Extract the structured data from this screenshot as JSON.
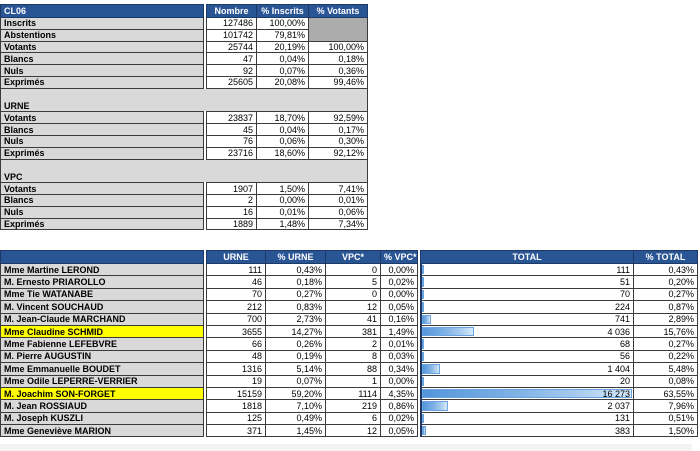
{
  "colors": {
    "header_blue": "#2A5595",
    "label_gray": "#D9D9D9",
    "blocked_gray": "#ACACAC",
    "highlight_yellow": "#FFFF00",
    "bar_blue_start": "#5395DB",
    "bar_blue_end": "#D6E9FA",
    "bar_axis_navy": "#1F3864"
  },
  "summary_table": {
    "title": "CL06",
    "columns": [
      "Nombre",
      "% Inscrits",
      "% Votants"
    ],
    "rows": [
      {
        "type": "data",
        "label": "Inscrits",
        "nombre": "127486",
        "pct_inscrits": "100,00%",
        "pct_votants": "",
        "blocked": "start"
      },
      {
        "type": "data",
        "label": "Abstentions",
        "nombre": "101742",
        "pct_inscrits": "79,81%",
        "pct_votants": "",
        "blocked": "cont"
      },
      {
        "type": "data",
        "label": "Votants",
        "nombre": "25744",
        "pct_inscrits": "20,19%",
        "pct_votants": "100,00%"
      },
      {
        "type": "data",
        "label": "Blancs",
        "nombre": "47",
        "pct_inscrits": "0,04%",
        "pct_votants": "0,18%"
      },
      {
        "type": "data",
        "label": "Nuls",
        "nombre": "92",
        "pct_inscrits": "0,07%",
        "pct_votants": "0,36%"
      },
      {
        "type": "data",
        "label": "Exprimés",
        "nombre": "25605",
        "pct_inscrits": "20,08%",
        "pct_votants": "99,46%"
      },
      {
        "type": "blank"
      },
      {
        "type": "section",
        "label": "URNE"
      },
      {
        "type": "data",
        "label": "Votants",
        "nombre": "23837",
        "pct_inscrits": "18,70%",
        "pct_votants": "92,59%"
      },
      {
        "type": "data",
        "label": "Blancs",
        "nombre": "45",
        "pct_inscrits": "0,04%",
        "pct_votants": "0,17%"
      },
      {
        "type": "data",
        "label": "Nuls",
        "nombre": "76",
        "pct_inscrits": "0,06%",
        "pct_votants": "0,30%"
      },
      {
        "type": "data",
        "label": "Exprimés",
        "nombre": "23716",
        "pct_inscrits": "18,60%",
        "pct_votants": "92,12%"
      },
      {
        "type": "blank"
      },
      {
        "type": "section",
        "label": "VPC"
      },
      {
        "type": "data",
        "label": "Votants",
        "nombre": "1907",
        "pct_inscrits": "1,50%",
        "pct_votants": "7,41%"
      },
      {
        "type": "data",
        "label": "Blancs",
        "nombre": "2",
        "pct_inscrits": "0,00%",
        "pct_votants": "0,01%"
      },
      {
        "type": "data",
        "label": "Nuls",
        "nombre": "16",
        "pct_inscrits": "0,01%",
        "pct_votants": "0,06%"
      },
      {
        "type": "data",
        "label": "Exprimés",
        "nombre": "1889",
        "pct_inscrits": "1,48%",
        "pct_votants": "7,34%"
      }
    ]
  },
  "results_table": {
    "columns": [
      "URNE",
      "% URNE",
      "VPC*",
      "% VPC*",
      "TOTAL",
      "% TOTAL"
    ],
    "max_total": 16273,
    "rows": [
      {
        "name": "Mme Martine LEROND",
        "urne": "111",
        "pct_urne": "0,43%",
        "vpc": "0",
        "pct_vpc": "0,00%",
        "total": "111",
        "total_value": 111,
        "pct_total": "0,43%",
        "highlight": false
      },
      {
        "name": "M. Ernesto PRIAROLLO",
        "urne": "46",
        "pct_urne": "0,18%",
        "vpc": "5",
        "pct_vpc": "0,02%",
        "total": "51",
        "total_value": 51,
        "pct_total": "0,20%",
        "highlight": false
      },
      {
        "name": "Mme Tie WATANABE",
        "urne": "70",
        "pct_urne": "0,27%",
        "vpc": "0",
        "pct_vpc": "0,00%",
        "total": "70",
        "total_value": 70,
        "pct_total": "0,27%",
        "highlight": false
      },
      {
        "name": "M. Vincent SOUCHAUD",
        "urne": "212",
        "pct_urne": "0,83%",
        "vpc": "12",
        "pct_vpc": "0,05%",
        "total": "224",
        "total_value": 224,
        "pct_total": "0,87%",
        "highlight": false
      },
      {
        "name": "M. Jean-Claude MARCHAND",
        "urne": "700",
        "pct_urne": "2,73%",
        "vpc": "41",
        "pct_vpc": "0,16%",
        "total": "741",
        "total_value": 741,
        "pct_total": "2,89%",
        "highlight": false
      },
      {
        "name": "Mme Claudine SCHMID",
        "urne": "3655",
        "pct_urne": "14,27%",
        "vpc": "381",
        "pct_vpc": "1,49%",
        "total": "4 036",
        "total_value": 4036,
        "pct_total": "15,76%",
        "highlight": true
      },
      {
        "name": "Mme Fabienne LEFEBVRE",
        "urne": "66",
        "pct_urne": "0,26%",
        "vpc": "2",
        "pct_vpc": "0,01%",
        "total": "68",
        "total_value": 68,
        "pct_total": "0,27%",
        "highlight": false
      },
      {
        "name": "M. Pierre AUGUSTIN",
        "urne": "48",
        "pct_urne": "0,19%",
        "vpc": "8",
        "pct_vpc": "0,03%",
        "total": "56",
        "total_value": 56,
        "pct_total": "0,22%",
        "highlight": false
      },
      {
        "name": "Mme Emmanuelle BOUDET",
        "urne": "1316",
        "pct_urne": "5,14%",
        "vpc": "88",
        "pct_vpc": "0,34%",
        "total": "1 404",
        "total_value": 1404,
        "pct_total": "5,48%",
        "highlight": false
      },
      {
        "name": "Mme Odile LEPERRE-VERRIER",
        "urne": "19",
        "pct_urne": "0,07%",
        "vpc": "1",
        "pct_vpc": "0,00%",
        "total": "20",
        "total_value": 20,
        "pct_total": "0,08%",
        "highlight": false
      },
      {
        "name": "M. Joachim SON-FORGET",
        "urne": "15159",
        "pct_urne": "59,20%",
        "vpc": "1114",
        "pct_vpc": "4,35%",
        "total": "16 273",
        "total_value": 16273,
        "pct_total": "63,55%",
        "highlight": true
      },
      {
        "name": "M. Jean ROSSIAUD",
        "urne": "1818",
        "pct_urne": "7,10%",
        "vpc": "219",
        "pct_vpc": "0,86%",
        "total": "2 037",
        "total_value": 2037,
        "pct_total": "7,96%",
        "highlight": false
      },
      {
        "name": "M. Joseph KUSZLI",
        "urne": "125",
        "pct_urne": "0,49%",
        "vpc": "6",
        "pct_vpc": "0,02%",
        "total": "131",
        "total_value": 131,
        "pct_total": "0,51%",
        "highlight": false
      },
      {
        "name": "Mme Geneviève MARION",
        "urne": "371",
        "pct_urne": "1,45%",
        "vpc": "12",
        "pct_vpc": "0,05%",
        "total": "383",
        "total_value": 383,
        "pct_total": "1,50%",
        "highlight": false
      }
    ]
  }
}
